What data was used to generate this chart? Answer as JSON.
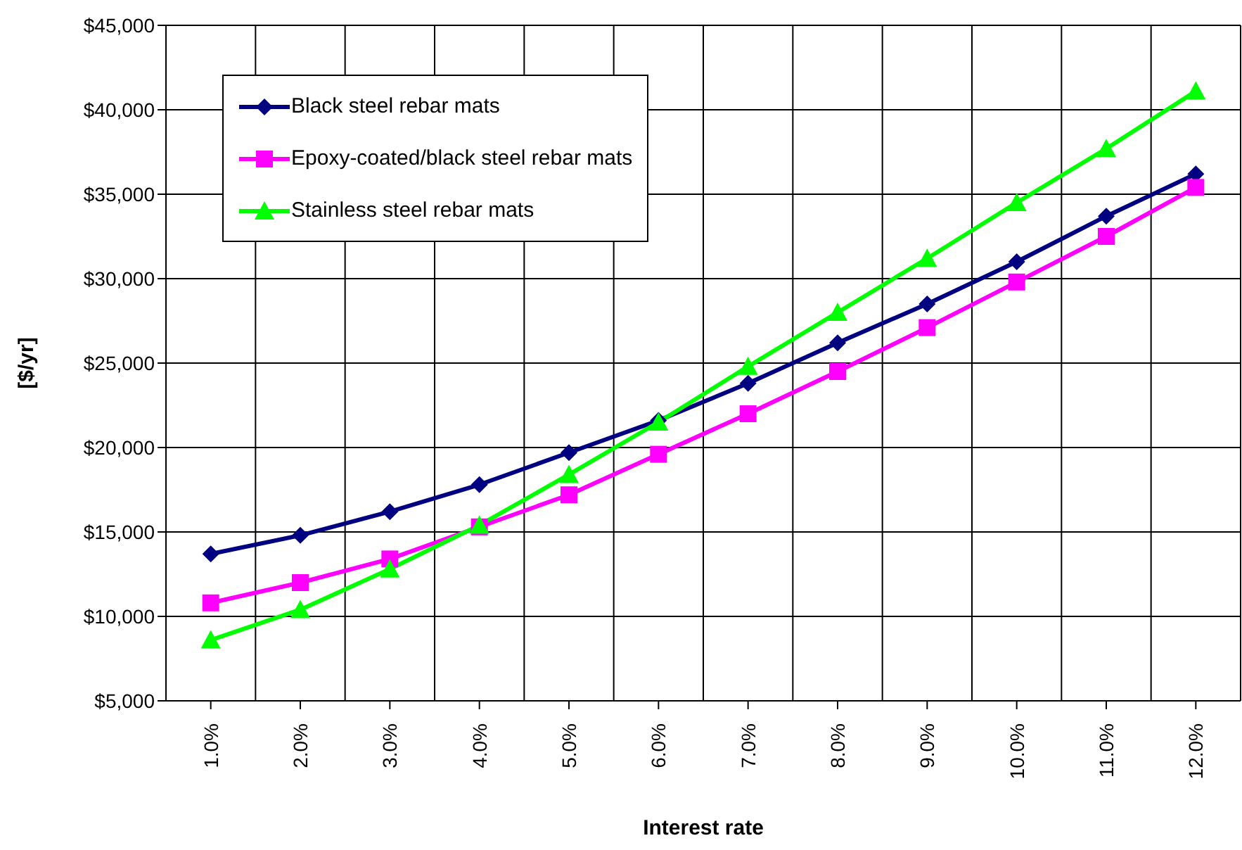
{
  "chart_data": {
    "type": "line",
    "xlabel": "Interest rate",
    "ylabel": "[$/yr]",
    "categories": [
      "1.0%",
      "2.0%",
      "3.0%",
      "4.0%",
      "5.0%",
      "6.0%",
      "7.0%",
      "8.0%",
      "9.0%",
      "10.0%",
      "11.0%",
      "12.0%"
    ],
    "series": [
      {
        "name": "Black steel rebar mats",
        "color": "#000080",
        "marker": "diamond",
        "values": [
          13700,
          14800,
          16200,
          17800,
          19700,
          21600,
          23800,
          26200,
          28500,
          31000,
          33700,
          36200
        ]
      },
      {
        "name": "Epoxy-coated/black steel rebar mats",
        "color": "#ff00ff",
        "marker": "square",
        "values": [
          10800,
          12000,
          13400,
          15300,
          17200,
          19600,
          22000,
          24500,
          27100,
          29800,
          32500,
          35400
        ]
      },
      {
        "name": "Stainless steel rebar mats",
        "color": "#00ff00",
        "marker": "triangle",
        "values": [
          8600,
          10400,
          12800,
          15400,
          18400,
          21500,
          24800,
          28000,
          31200,
          34500,
          37700,
          41100
        ]
      }
    ],
    "ylim": [
      5000,
      45000
    ],
    "yticks": [
      {
        "value": 5000,
        "label": "$5,000"
      },
      {
        "value": 10000,
        "label": "$10,000"
      },
      {
        "value": 15000,
        "label": "$15,000"
      },
      {
        "value": 20000,
        "label": "$20,000"
      },
      {
        "value": 25000,
        "label": "$25,000"
      },
      {
        "value": 30000,
        "label": "$30,000"
      },
      {
        "value": 35000,
        "label": "$35,000"
      },
      {
        "value": 40000,
        "label": "$40,000"
      },
      {
        "value": 45000,
        "label": "$45,000"
      }
    ],
    "grid": true,
    "legend": "top left",
    "line_style": "solid"
  }
}
